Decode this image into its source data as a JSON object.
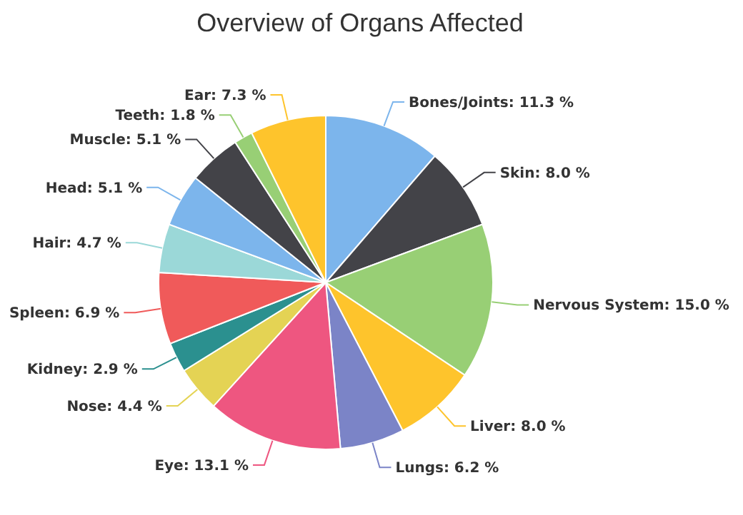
{
  "chart_data": {
    "type": "pie",
    "title": "Overview of Organs Affected",
    "categories": [
      "Bones/Joints",
      "Skin",
      "Nervous System",
      "Liver",
      "Lungs",
      "Eye",
      "Nose",
      "Kidney",
      "Spleen",
      "Hair",
      "Head",
      "Muscle",
      "Teeth",
      "Ear"
    ],
    "values": [
      11.3,
      8.0,
      15.0,
      8.0,
      6.2,
      13.1,
      4.4,
      2.9,
      6.9,
      4.7,
      5.1,
      5.1,
      1.8,
      7.3
    ],
    "value_labels": [
      "11.3 %",
      "8.0 %",
      "15.0 %",
      "8.0 %",
      "6.2 %",
      "13.1 %",
      "4.4 %",
      "2.9 %",
      "6.9 %",
      "4.7 %",
      "5.1 %",
      "5.1 %",
      "1.8 %",
      "7.3 %"
    ],
    "colors": [
      "#7cb5ec",
      "#434348",
      "#98cf75",
      "#fec42c",
      "#7b84c7",
      "#ee5680",
      "#e4d354",
      "#2b908f",
      "#f05a5a",
      "#9bd8d8",
      "#7cb5ec",
      "#434348",
      "#98cf75",
      "#fec42c"
    ]
  }
}
